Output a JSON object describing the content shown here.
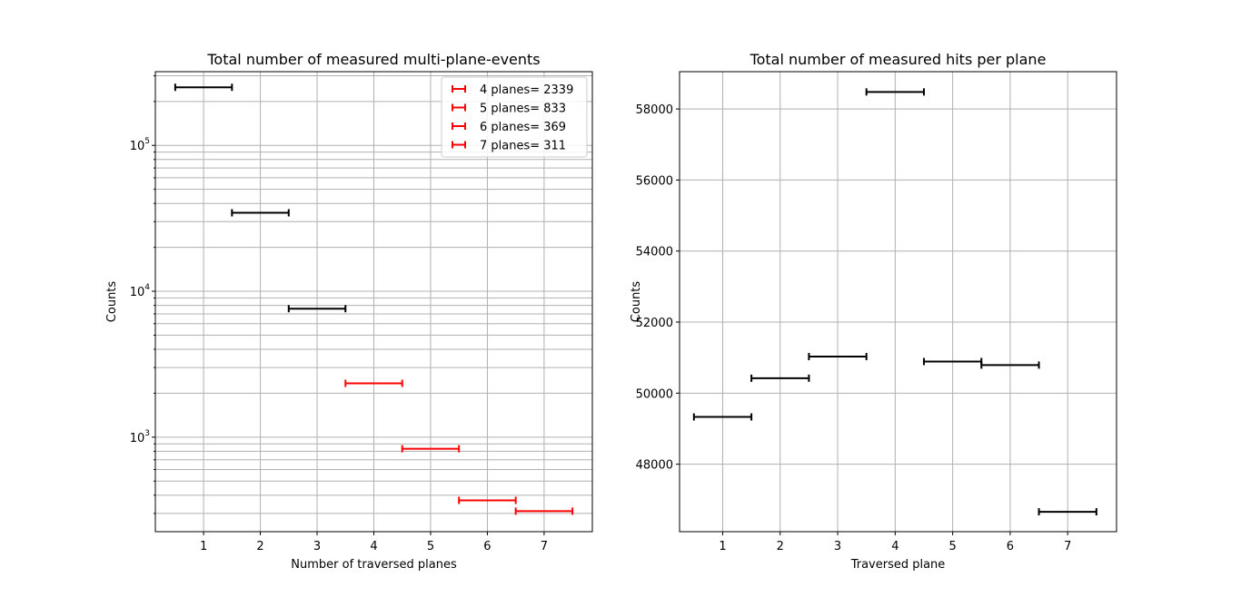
{
  "chart_data": [
    {
      "type": "scatter",
      "title": "Total number of measured multi-plane-events",
      "xlabel": "Number of traversed planes",
      "ylabel": "Counts",
      "yscale": "log",
      "xlim": [
        0.15,
        7.85
      ],
      "ylim": [
        225,
        320000
      ],
      "grid": "on",
      "xticks": [
        "1",
        "2",
        "3",
        "4",
        "5",
        "6",
        "7"
      ],
      "yticks": [
        {
          "base": "10",
          "exp": "3",
          "value": 1000
        },
        {
          "base": "10",
          "exp": "4",
          "value": 10000
        },
        {
          "base": "10",
          "exp": "5",
          "value": 100000
        }
      ],
      "legend": {
        "position": "top-right",
        "entries": [
          "4 planes= 2339",
          "5 planes= 833",
          "6 planes= 369",
          "7 planes= 311"
        ]
      },
      "series": [
        {
          "color": "#000000",
          "points": [
            {
              "x": 1,
              "xerr": 0.5,
              "y": 250000
            },
            {
              "x": 2,
              "xerr": 0.5,
              "y": 34500
            },
            {
              "x": 3,
              "xerr": 0.5,
              "y": 7600
            }
          ]
        },
        {
          "color": "#ff0000",
          "points": [
            {
              "x": 4,
              "xerr": 0.5,
              "y": 2339
            },
            {
              "x": 5,
              "xerr": 0.5,
              "y": 833
            },
            {
              "x": 6,
              "xerr": 0.5,
              "y": 369
            },
            {
              "x": 7,
              "xerr": 0.5,
              "y": 311
            }
          ]
        }
      ]
    },
    {
      "type": "scatter",
      "title": "Total number of measured hits per plane",
      "xlabel": "Traversed plane",
      "ylabel": "Counts",
      "yscale": "linear",
      "xlim": [
        0.25,
        7.85
      ],
      "ylim": [
        46100,
        59050
      ],
      "grid": "on",
      "xticks": [
        "1",
        "2",
        "3",
        "4",
        "5",
        "6",
        "7"
      ],
      "yticks": [
        "48000",
        "50000",
        "52000",
        "54000",
        "56000",
        "58000"
      ],
      "series": [
        {
          "color": "#000000",
          "points": [
            {
              "x": 1,
              "xerr": 0.5,
              "y": 49330
            },
            {
              "x": 2,
              "xerr": 0.5,
              "y": 50420
            },
            {
              "x": 3,
              "xerr": 0.5,
              "y": 51030
            },
            {
              "x": 4,
              "xerr": 0.5,
              "y": 58480
            },
            {
              "x": 5,
              "xerr": 0.5,
              "y": 50890
            },
            {
              "x": 6,
              "xerr": 0.5,
              "y": 50790
            },
            {
              "x": 7,
              "xerr": 0.5,
              "y": 46660
            }
          ]
        }
      ]
    }
  ]
}
